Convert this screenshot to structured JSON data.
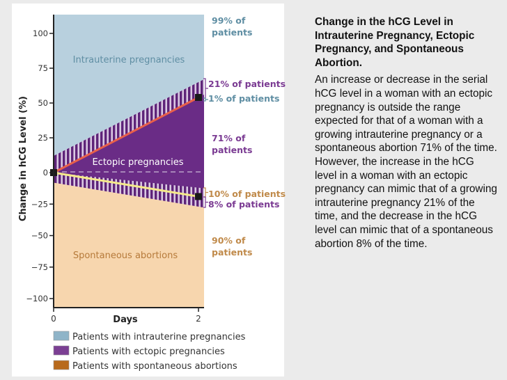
{
  "chart_data": {
    "type": "area",
    "xlabel": "Days",
    "ylabel": "Change in hCG Level (%)",
    "x_ticks": [
      "0",
      "2"
    ],
    "y_ticks": [
      "100",
      "75",
      "50",
      "25",
      "0",
      "−25",
      "−50",
      "−75",
      "−100"
    ],
    "y_tick_values": [
      100,
      75,
      50,
      25,
      0,
      -25,
      -50,
      -75,
      -100
    ],
    "xlim": [
      0,
      2.08
    ],
    "ylim": [
      -105,
      110
    ],
    "grid": false,
    "regions": [
      {
        "name": "Intrauterine pregnancies",
        "color": "#b8d0de",
        "label_color": "#5f8ea3"
      },
      {
        "name": "Ectopic pregnancies",
        "color": "#6a2c86",
        "label_color": "#ffffff"
      },
      {
        "name": "Spontaneous abortions",
        "color": "#f7d6ae",
        "label_color": "#b67a3a"
      }
    ],
    "upper_hatch": {
      "lower": [
        [
          0,
          0
        ],
        [
          2,
          54
        ]
      ],
      "upper": [
        [
          0,
          12
        ],
        [
          2,
          65
        ]
      ]
    },
    "lower_hatch": {
      "upper": [
        [
          0,
          0
        ],
        [
          2,
          -12
        ]
      ],
      "lower": [
        [
          0,
          -8
        ],
        [
          2,
          -27
        ]
      ]
    },
    "intrauterine_line": {
      "color": "#e8604a",
      "points": [
        [
          0,
          0
        ],
        [
          2,
          54
        ]
      ]
    },
    "abortion_line": {
      "color": "#f5e98a",
      "points": [
        [
          0,
          0
        ],
        [
          2,
          -19
        ]
      ]
    },
    "dashed_reference": 0,
    "annotations": [
      {
        "text_lines": [
          "99% of",
          "patients"
        ],
        "color": "#5f8ea3"
      },
      {
        "text_lines": [
          "21% of patients"
        ],
        "color": "#7a3a92"
      },
      {
        "text_lines": [
          "1% of patients"
        ],
        "color": "#5f8ea3"
      },
      {
        "text_lines": [
          "71% of",
          "patients"
        ],
        "color": "#7a3a92"
      },
      {
        "text_lines": [
          "10% of patients"
        ],
        "color": "#c08a4a"
      },
      {
        "text_lines": [
          "8% of patients"
        ],
        "color": "#7a3a92"
      },
      {
        "text_lines": [
          "90% of",
          "patients"
        ],
        "color": "#c08a4a"
      }
    ],
    "legend": [
      {
        "label": "Patients with intrauterine pregnancies",
        "color": "#8fb4c8"
      },
      {
        "label": "Patients with ectopic pregnancies",
        "color": "#7b3f93"
      },
      {
        "label": "Patients with spontaneous abortions",
        "color": "#b86a1c"
      }
    ],
    "legend_placement": "bottom"
  },
  "side": {
    "title": "Change in the hCG Level in Intrauterine Pregnancy, Ectopic Pregnancy, and Spontaneous Abortion.",
    "body": "An increase or decrease in the serial hCG level in a woman with an ectopic pregnancy is outside the range expected for that of a woman with a growing intrauterine pregnancy or a spontaneous abortion 71% of the time. However, the increase in the hCG level in a woman with an ectopic pregnancy can mimic that of a growing  intrauterine pregnancy 21% of the time, and the decrease in the hCG level can mimic that of a spontaneous abortion 8% of the time."
  }
}
